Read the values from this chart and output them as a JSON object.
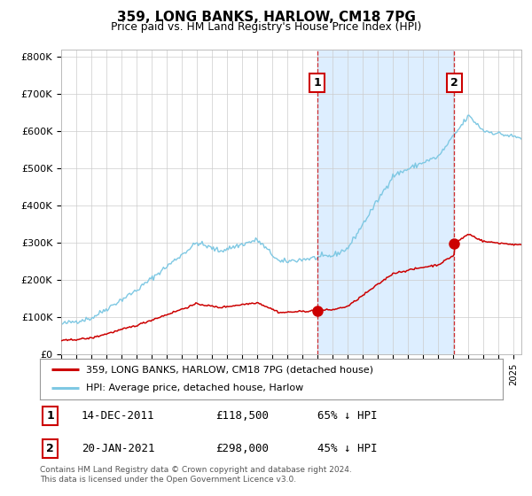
{
  "title": "359, LONG BANKS, HARLOW, CM18 7PG",
  "subtitle": "Price paid vs. HM Land Registry's House Price Index (HPI)",
  "ylabel_ticks": [
    "£0",
    "£100K",
    "£200K",
    "£300K",
    "£400K",
    "£500K",
    "£600K",
    "£700K",
    "£800K"
  ],
  "ytick_values": [
    0,
    100000,
    200000,
    300000,
    400000,
    500000,
    600000,
    700000,
    800000
  ],
  "ylim": [
    0,
    820000
  ],
  "hpi_color": "#7ec8e3",
  "price_color": "#cc0000",
  "marker1_x": 2011.96,
  "marker1_y": 118500,
  "marker2_x": 2021.05,
  "marker2_y": 298000,
  "legend_label_red": "359, LONG BANKS, HARLOW, CM18 7PG (detached house)",
  "legend_label_blue": "HPI: Average price, detached house, Harlow",
  "table_rows": [
    {
      "num": "1",
      "date": "14-DEC-2011",
      "price": "£118,500",
      "pct": "65% ↓ HPI"
    },
    {
      "num": "2",
      "date": "20-JAN-2021",
      "price": "£298,000",
      "pct": "45% ↓ HPI"
    }
  ],
  "footnote": "Contains HM Land Registry data © Crown copyright and database right 2024.\nThis data is licensed under the Open Government Licence v3.0.",
  "vline1_x": 2011.96,
  "vline2_x": 2021.05,
  "background_color": "#ffffff",
  "grid_color": "#cccccc",
  "shade_color": "#ddeeff",
  "xlim_left": 1995,
  "xlim_right": 2025.5
}
